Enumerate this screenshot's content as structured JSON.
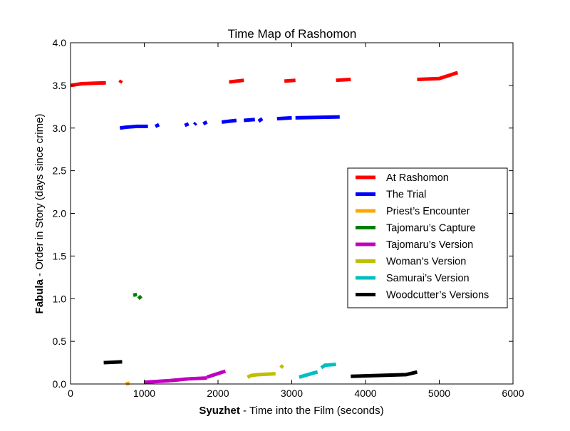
{
  "chart_data": {
    "type": "line",
    "title": "Time Map of Rashomon",
    "xlabel_bold": "Syuzhet",
    "xlabel_rest": " - Time into the Film (seconds)",
    "ylabel_bold": "Fabula",
    "ylabel_rest": " - Order in Story (days since crime)",
    "xlim": [
      0,
      6000
    ],
    "ylim": [
      0,
      4
    ],
    "xticks": [
      "0",
      "1000",
      "2000",
      "3000",
      "4000",
      "5000",
      "6000"
    ],
    "yticks": [
      "0.0",
      "0.5",
      "1.0",
      "1.5",
      "2.0",
      "2.5",
      "3.0",
      "3.5",
      "4.0"
    ],
    "legend_position": "center-right",
    "series": [
      {
        "name": "At Rashomon",
        "color": "#ff0000",
        "segments": [
          [
            [
              0,
              3.5
            ],
            [
              150,
              3.52
            ],
            [
              480,
              3.53
            ]
          ],
          [
            [
              670,
              3.53
            ],
            [
              690,
              3.56
            ]
          ],
          [
            [
              2150,
              3.54
            ],
            [
              2350,
              3.56
            ]
          ],
          [
            [
              2900,
              3.55
            ],
            [
              3050,
              3.56
            ]
          ],
          [
            [
              3600,
              3.56
            ],
            [
              3800,
              3.57
            ]
          ],
          [
            [
              4700,
              3.57
            ],
            [
              5000,
              3.58
            ],
            [
              5250,
              3.65
            ]
          ]
        ]
      },
      {
        "name": "The Trial",
        "color": "#0000ff",
        "segments": [
          [
            [
              670,
              3.0
            ],
            [
              750,
              3.01
            ],
            [
              900,
              3.02
            ],
            [
              1050,
              3.02
            ]
          ],
          [
            [
              1150,
              3.02
            ],
            [
              1200,
              3.04
            ]
          ],
          [
            [
              1550,
              3.03
            ],
            [
              1600,
              3.05
            ]
          ],
          [
            [
              1680,
              3.04
            ],
            [
              1700,
              3.06
            ]
          ],
          [
            [
              1800,
              3.05
            ],
            [
              1850,
              3.07
            ]
          ],
          [
            [
              2050,
              3.07
            ],
            [
              2250,
              3.09
            ]
          ],
          [
            [
              2350,
              3.09
            ],
            [
              2500,
              3.1
            ]
          ],
          [
            [
              2550,
              3.08
            ],
            [
              2600,
              3.11
            ]
          ],
          [
            [
              2800,
              3.11
            ],
            [
              3000,
              3.12
            ]
          ],
          [
            [
              3050,
              3.12
            ],
            [
              3650,
              3.13
            ]
          ]
        ]
      },
      {
        "name": "Priest’s Encounter",
        "color": "#ffa500",
        "segments": [
          [
            [
              750,
              0.0
            ],
            [
              800,
              0.01
            ]
          ]
        ]
      },
      {
        "name": "Tajomaru’s Capture",
        "color": "#008000",
        "segments": [
          [
            [
              850,
              1.04
            ],
            [
              900,
              1.05
            ]
          ],
          [
            [
              920,
              1.0
            ],
            [
              960,
              1.03
            ]
          ]
        ]
      },
      {
        "name": "Tajomaru’s Version",
        "color": "#bf00bf",
        "segments": [
          [
            [
              1000,
              0.02
            ],
            [
              1350,
              0.04
            ]
          ],
          [
            [
              1350,
              0.04
            ],
            [
              1600,
              0.06
            ]
          ],
          [
            [
              1600,
              0.06
            ],
            [
              1850,
              0.07
            ]
          ],
          [
            [
              1850,
              0.08
            ],
            [
              2100,
              0.15
            ]
          ]
        ]
      },
      {
        "name": "Woman’s Version",
        "color": "#bfbf00",
        "segments": [
          [
            [
              2400,
              0.08
            ],
            [
              2450,
              0.1
            ],
            [
              2550,
              0.11
            ],
            [
              2780,
              0.12
            ]
          ],
          [
            [
              2850,
              0.19
            ],
            [
              2880,
              0.22
            ]
          ]
        ]
      },
      {
        "name": "Samurai’s Version",
        "color": "#00bfbf",
        "segments": [
          [
            [
              3100,
              0.08
            ],
            [
              3300,
              0.13
            ],
            [
              3350,
              0.14
            ]
          ],
          [
            [
              3400,
              0.19
            ],
            [
              3450,
              0.22
            ],
            [
              3600,
              0.23
            ]
          ]
        ]
      },
      {
        "name": "Woodcutter’s Versions",
        "color": "#000000",
        "segments": [
          [
            [
              450,
              0.25
            ],
            [
              700,
              0.26
            ]
          ],
          [
            [
              3800,
              0.09
            ],
            [
              4550,
              0.11
            ],
            [
              4600,
              0.12
            ],
            [
              4700,
              0.14
            ]
          ]
        ]
      }
    ]
  }
}
